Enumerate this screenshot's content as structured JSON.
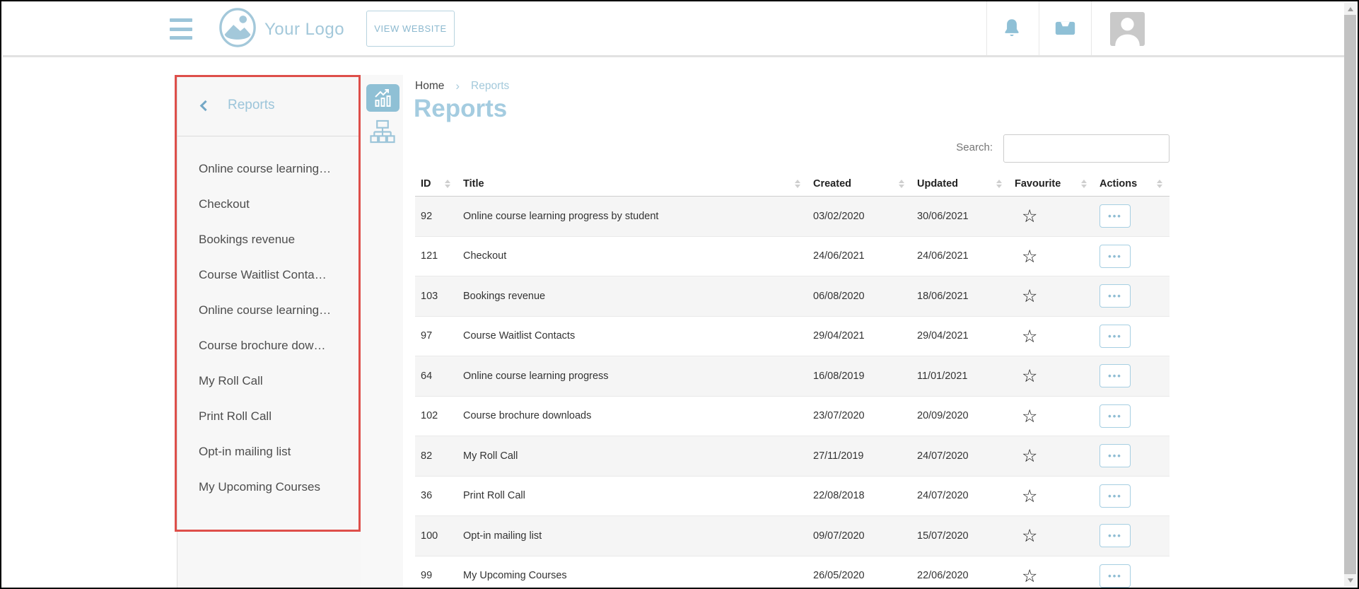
{
  "header": {
    "logo_text": "Your Logo",
    "view_website_label": "VIEW WEBSITE"
  },
  "sidebar": {
    "back_label": "Reports",
    "items": [
      "Online course learning…",
      "Checkout",
      "Bookings revenue",
      "Course Waitlist Conta…",
      "Online course learning…",
      "Course brochure dow…",
      "My Roll Call",
      "Print Roll Call",
      "Opt-in mailing list",
      "My Upcoming Courses"
    ]
  },
  "breadcrumb": {
    "items": [
      "Home",
      "Reports"
    ],
    "separator": "›"
  },
  "page": {
    "title": "Reports"
  },
  "search": {
    "label": "Search:",
    "value": ""
  },
  "table": {
    "columns": [
      "ID",
      "Title",
      "Created",
      "Updated",
      "Favourite",
      "Actions"
    ],
    "rows": [
      {
        "id": "92",
        "title": "Online course learning progress by student",
        "created": "03/02/2020",
        "updated": "30/06/2021",
        "favourite": false
      },
      {
        "id": "121",
        "title": "Checkout",
        "created": "24/06/2021",
        "updated": "24/06/2021",
        "favourite": false
      },
      {
        "id": "103",
        "title": "Bookings revenue",
        "created": "06/08/2020",
        "updated": "18/06/2021",
        "favourite": false
      },
      {
        "id": "97",
        "title": "Course Waitlist Contacts",
        "created": "29/04/2021",
        "updated": "29/04/2021",
        "favourite": false
      },
      {
        "id": "64",
        "title": "Online course learning progress",
        "created": "16/08/2019",
        "updated": "11/01/2021",
        "favourite": false
      },
      {
        "id": "102",
        "title": "Course brochure downloads",
        "created": "23/07/2020",
        "updated": "20/09/2020",
        "favourite": false
      },
      {
        "id": "82",
        "title": "My Roll Call",
        "created": "27/11/2019",
        "updated": "24/07/2020",
        "favourite": false
      },
      {
        "id": "36",
        "title": "Print Roll Call",
        "created": "22/08/2018",
        "updated": "24/07/2020",
        "favourite": false
      },
      {
        "id": "100",
        "title": "Opt-in mailing list",
        "created": "09/07/2020",
        "updated": "15/07/2020",
        "favourite": false
      },
      {
        "id": "99",
        "title": "My Upcoming Courses",
        "created": "26/05/2020",
        "updated": "22/06/2020",
        "favourite": false
      }
    ]
  },
  "icons": {
    "hamburger": "menu-icon",
    "bell": "notifications-icon",
    "inbox_tray": "messages-icon",
    "chart": "reports-chart-icon",
    "sitemap": "categories-sitemap-icon",
    "favourite_star": "☆",
    "actions_dots": "•••",
    "back_chevron": "chevron-left",
    "breadcrumb_separator": "›"
  },
  "colors": {
    "accent_light_blue": "#9fc8dc",
    "accent_dark_blue": "#74a8c6",
    "annotation_red": "#de4f4a",
    "row_alt_gray": "#f5f5f5",
    "avatar_gray": "#c9c9c9",
    "table_text": "#333333"
  }
}
